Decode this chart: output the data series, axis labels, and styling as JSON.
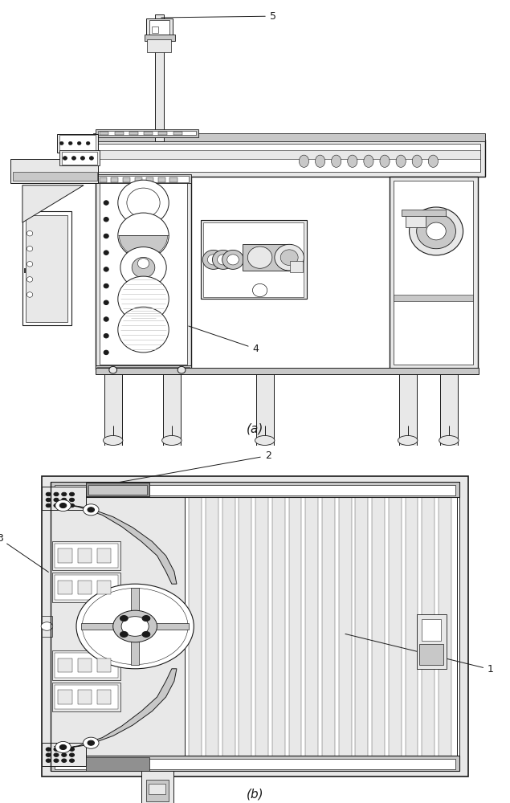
{
  "fig_width": 6.35,
  "fig_height": 10.0,
  "dpi": 100,
  "bg_color": "#ffffff",
  "lc": "#1a1a1a",
  "fl": "#e8e8e8",
  "fm": "#c8c8c8",
  "mg": "#909090",
  "label_a": "(a)",
  "label_b": "(b)"
}
